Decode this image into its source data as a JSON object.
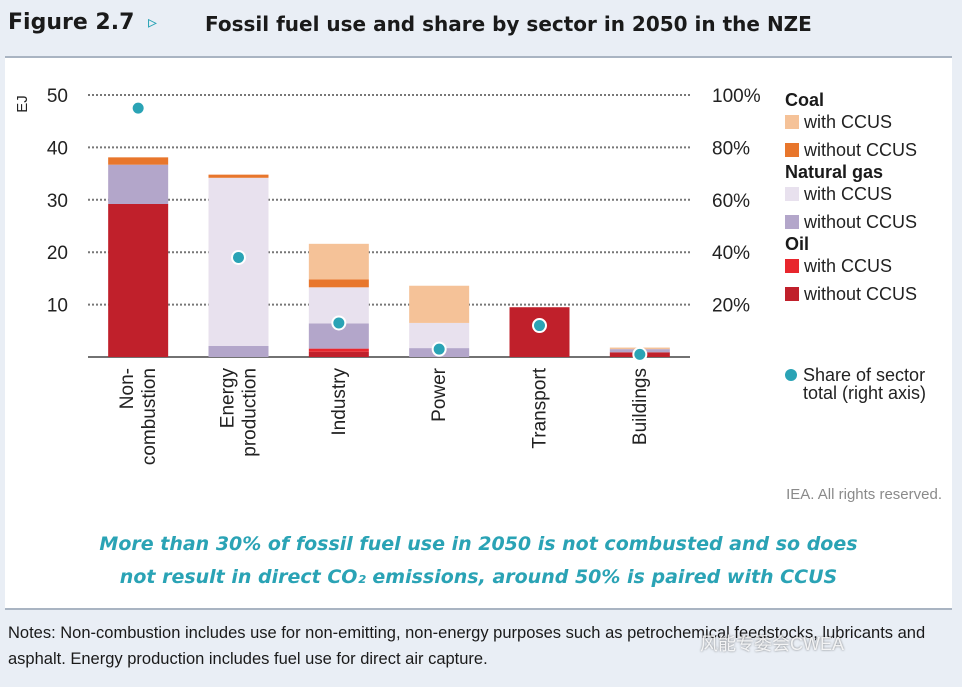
{
  "header": {
    "figure_number": "Figure 2.7",
    "arrow": "▹",
    "title": "Fossil fuel use and share by sector in 2050 in the NZE"
  },
  "chart_data": {
    "type": "bar",
    "stacked": true,
    "ylabel": "EJ",
    "ylim": [
      0,
      50
    ],
    "yticks": [
      10,
      20,
      30,
      40,
      50
    ],
    "y2ticks": [
      "20%",
      "40%",
      "60%",
      "80%",
      "100%"
    ],
    "y2lim": [
      0,
      100
    ],
    "categories": [
      [
        "Non-",
        "combustion"
      ],
      [
        "Energy",
        "production"
      ],
      [
        "Industry"
      ],
      [
        "Power"
      ],
      [
        "Transport"
      ],
      [
        "Buildings"
      ]
    ],
    "series": [
      {
        "name": "Oil without CCUS",
        "color": "#c0202b",
        "values": [
          29.2,
          0,
          1.0,
          0,
          9.5,
          0.9
        ]
      },
      {
        "name": "Oil with CCUS",
        "color": "#e8262d",
        "values": [
          0,
          0,
          0.6,
          0,
          0,
          0
        ]
      },
      {
        "name": "Natural gas without CCUS",
        "color": "#b3a6ca",
        "values": [
          7.5,
          2.1,
          4.8,
          1.7,
          0,
          0.6
        ]
      },
      {
        "name": "Natural gas with CCUS",
        "color": "#e8e1ee",
        "values": [
          0,
          32.1,
          6.9,
          4.8,
          0,
          0
        ]
      },
      {
        "name": "Coal without CCUS",
        "color": "#e8762c",
        "values": [
          1.4,
          0.6,
          1.5,
          0,
          0,
          0
        ]
      },
      {
        "name": "Coal with CCUS",
        "color": "#f5c298",
        "values": [
          0,
          0,
          6.8,
          7.1,
          0,
          0.3
        ]
      }
    ],
    "share_series": {
      "name": "Share of sector total (right axis)",
      "color": "#2aa3b5",
      "values": [
        95,
        38,
        13,
        3,
        12,
        1
      ]
    },
    "legend": {
      "groups": [
        {
          "title": "Coal",
          "items": [
            {
              "label": "with CCUS",
              "color": "#f5c298"
            },
            {
              "label": "without CCUS",
              "color": "#e8762c"
            }
          ]
        },
        {
          "title": "Natural gas",
          "items": [
            {
              "label": "with CCUS",
              "color": "#e8e1ee"
            },
            {
              "label": "without CCUS",
              "color": "#b3a6ca"
            }
          ]
        },
        {
          "title": "Oil",
          "items": [
            {
              "label": "with CCUS",
              "color": "#e8262d"
            },
            {
              "label": "without CCUS",
              "color": "#c0202b"
            }
          ]
        }
      ],
      "share_label_1": "Share of sector",
      "share_label_2": "total (right axis)"
    }
  },
  "rights": "IEA. All rights reserved.",
  "caption": {
    "line1": "More than 30% of fossil fuel use in 2050 is not combusted and so does",
    "line2": "not result in direct CO₂ emissions, around 50% is paired with CCUS"
  },
  "notes": "Notes: Non-combustion includes use for non-emitting, non-energy purposes such as petrochemical feedstocks, lubricants and asphalt. Energy production includes fuel use for direct air capture.",
  "watermark": "风能专委会CWEA"
}
